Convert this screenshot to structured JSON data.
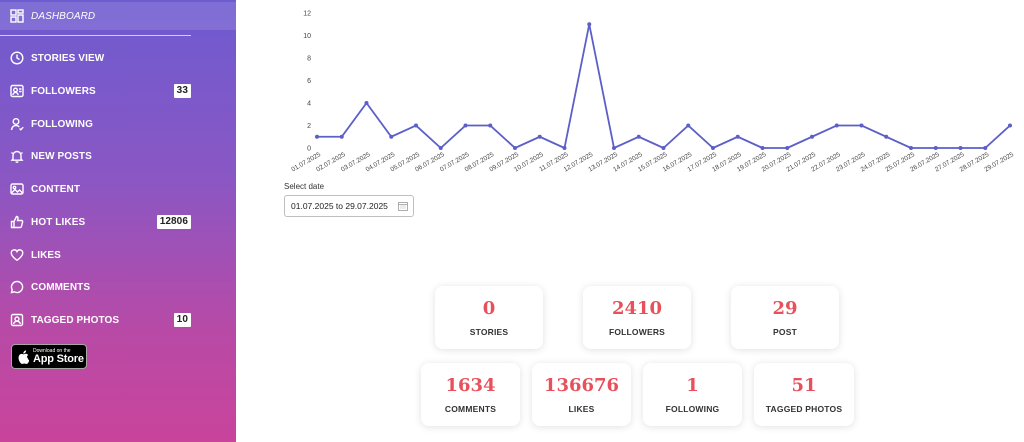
{
  "sidebar": {
    "items": [
      {
        "label": "DASHBOARD",
        "icon": "dashboard-icon"
      },
      {
        "label": "STORIES VIEW",
        "icon": "clock-icon"
      },
      {
        "label": "FOLLOWERS",
        "icon": "followers-icon",
        "badge": "33"
      },
      {
        "label": "FOLLOWING",
        "icon": "user-icon"
      },
      {
        "label": "NEW POSTS",
        "icon": "bell-icon"
      },
      {
        "label": "CONTENT",
        "icon": "image-icon"
      },
      {
        "label": "HOT LIKES",
        "icon": "thumbs-up-icon",
        "badge": "12806"
      },
      {
        "label": "LIKES",
        "icon": "heart-icon"
      },
      {
        "label": "COMMENTS",
        "icon": "comment-icon"
      },
      {
        "label": "TAGGED PHOTOS",
        "icon": "tag-photo-icon",
        "badge": "10"
      }
    ],
    "appstore": {
      "small": "Download on the",
      "big": "App Store"
    }
  },
  "chart_data": {
    "type": "line",
    "x": [
      "01.07.2025",
      "02.07.2025",
      "03.07.2025",
      "04.07.2025",
      "05.07.2025",
      "06.07.2025",
      "07.07.2025",
      "08.07.2025",
      "09.07.2025",
      "10.07.2025",
      "11.07.2025",
      "12.07.2025",
      "13.07.2025",
      "14.07.2025",
      "15.07.2025",
      "16.07.2025",
      "17.07.2025",
      "18.07.2025",
      "19.07.2025",
      "20.07.2025",
      "21.07.2025",
      "22.07.2025",
      "23.07.2025",
      "24.07.2025",
      "25.07.2025",
      "26.07.2025",
      "27.07.2025",
      "28.07.2025",
      "29.07.2025"
    ],
    "values": [
      1,
      1,
      4,
      1,
      2,
      0,
      2,
      2,
      0,
      1,
      0,
      11,
      0,
      1,
      0,
      2,
      0,
      1,
      0,
      0,
      1,
      2,
      2,
      1,
      0,
      0,
      0,
      0,
      2
    ],
    "yticks": [
      "0",
      "2",
      "4",
      "6",
      "8",
      "10",
      "12"
    ],
    "ylim": [
      0,
      12
    ],
    "color": "#5b5fc7"
  },
  "date": {
    "label": "Select date",
    "value": "01.07.2025 to 29.07.2025"
  },
  "stats": [
    {
      "value": "0",
      "label": "STORIES"
    },
    {
      "value": "2410",
      "label": "FOLLOWERS"
    },
    {
      "value": "29",
      "label": "POST"
    },
    {
      "value": "1634",
      "label": "COMMENTS"
    },
    {
      "value": "136676",
      "label": "LIKES"
    },
    {
      "value": "1",
      "label": "FOLLOWING"
    },
    {
      "value": "51",
      "label": "TAGGED PHOTOS"
    }
  ]
}
